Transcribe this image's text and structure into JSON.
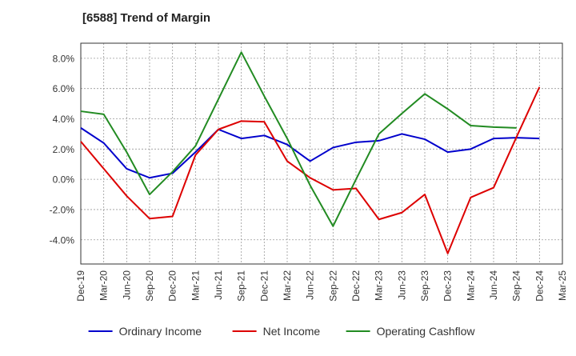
{
  "chart_data": {
    "type": "line",
    "title": "[6588]  Trend of Margin",
    "xlabel": "",
    "ylabel": "",
    "categories": [
      "Dec-19",
      "Mar-20",
      "Jun-20",
      "Sep-20",
      "Dec-20",
      "Mar-21",
      "Jun-21",
      "Sep-21",
      "Dec-21",
      "Mar-22",
      "Jun-22",
      "Sep-22",
      "Dec-22",
      "Mar-23",
      "Jun-23",
      "Sep-23",
      "Dec-23",
      "Mar-24",
      "Jun-24",
      "Sep-24",
      "Dec-24",
      "Mar-25"
    ],
    "ylim": [
      -5.6,
      9.0
    ],
    "yticks": [
      -4.0,
      -2.0,
      0.0,
      2.0,
      4.0,
      6.0,
      8.0
    ],
    "ytick_labels": [
      "-4.0%",
      "-2.0%",
      "0.0%",
      "2.0%",
      "4.0%",
      "6.0%",
      "8.0%"
    ],
    "grid": true,
    "legend_position": "bottom",
    "series": [
      {
        "name": "Ordinary Income",
        "color": "#0000cc",
        "values": [
          3.4,
          2.4,
          0.7,
          0.1,
          0.4,
          1.8,
          3.3,
          2.7,
          2.9,
          2.3,
          1.2,
          2.1,
          2.45,
          2.55,
          3.0,
          2.65,
          1.8,
          2.0,
          2.7,
          2.75,
          2.7,
          null
        ]
      },
      {
        "name": "Net Income",
        "color": "#dd0000",
        "values": [
          2.5,
          0.7,
          -1.1,
          -2.6,
          -2.45,
          1.6,
          3.3,
          3.85,
          3.8,
          1.2,
          0.1,
          -0.7,
          -0.6,
          -2.65,
          -2.2,
          -1.0,
          -4.9,
          -1.2,
          -0.55,
          2.8,
          6.1,
          null
        ]
      },
      {
        "name": "Operating Cashflow",
        "color": "#228b22",
        "values": [
          4.5,
          4.3,
          1.8,
          -1.0,
          0.5,
          2.2,
          5.3,
          8.4,
          5.5,
          2.7,
          -0.4,
          -3.1,
          0.0,
          3.0,
          4.35,
          5.65,
          4.65,
          3.55,
          3.45,
          3.4,
          null,
          null
        ]
      }
    ]
  }
}
